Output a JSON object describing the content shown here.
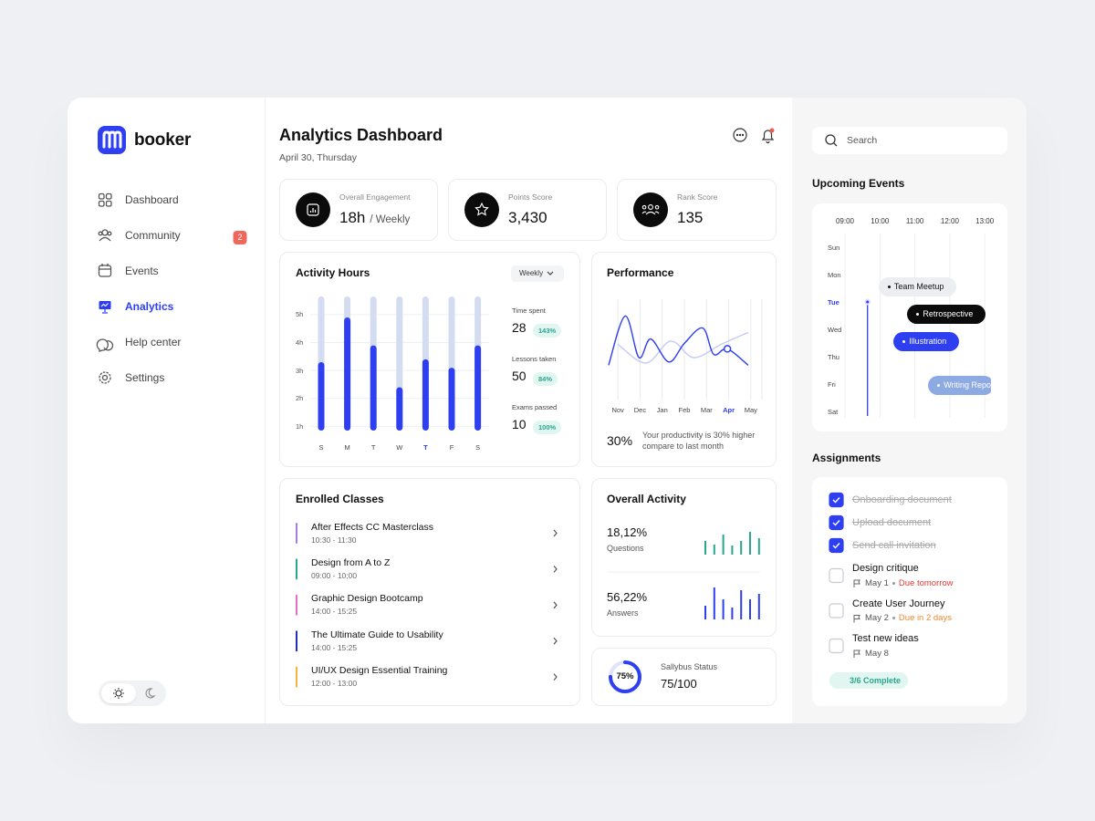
{
  "brand": "booker",
  "nav": [
    {
      "label": "Dashboard"
    },
    {
      "label": "Community",
      "badge": "2"
    },
    {
      "label": "Events"
    },
    {
      "label": "Analytics",
      "active": true
    },
    {
      "label": "Help center"
    },
    {
      "label": "Settings"
    }
  ],
  "header": {
    "title": "Analytics Dashboard",
    "date": "April 30, Thursday"
  },
  "stats": [
    {
      "label": "Overall Engagement",
      "value": "18h",
      "unit": "/ Weekly"
    },
    {
      "label": "Points Score",
      "value": "3,430"
    },
    {
      "label": "Rank Score",
      "value": "135"
    }
  ],
  "activity_hours": {
    "type": "bar",
    "title": "Activity Hours",
    "period": "Weekly",
    "categories": [
      "S",
      "M",
      "T",
      "W",
      "T",
      "F",
      "S"
    ],
    "highlight": 4,
    "values": [
      3.3,
      4.9,
      3.9,
      2.4,
      3.4,
      3.1,
      3.9
    ],
    "color": "#2e3ff2",
    "track_color": "#d4dcf1",
    "ylim": [
      0.85,
      5.65
    ],
    "yticks": [
      {
        "value": 1,
        "label": "1h"
      },
      {
        "value": 2,
        "label": "2h"
      },
      {
        "value": 3,
        "label": "3h"
      },
      {
        "value": 4,
        "label": "4h"
      },
      {
        "value": 5,
        "label": "5h"
      }
    ],
    "grid": true,
    "summary": [
      {
        "label": "Time spent",
        "value": 28,
        "change": "143%"
      },
      {
        "label": "Lessons taken",
        "value": 50,
        "change": "84%"
      },
      {
        "label": "Exams passed",
        "value": 10,
        "change": "100%"
      }
    ]
  },
  "performance": {
    "type": "line",
    "title": "Performance",
    "categories": [
      "Nov",
      "Dec",
      "Jan",
      "Feb",
      "Mar",
      "Apr",
      "May"
    ],
    "highlight": 5,
    "xlim": [
      -0.5,
      6.5
    ],
    "ylim": [
      0,
      100
    ],
    "series": [
      {
        "color": "#2e3ff2",
        "x": [
          -0.42,
          0.33,
          0.95,
          1.48,
          2.3,
          3.0,
          3.83,
          4.32,
          4.94,
          5.88
        ],
        "values": [
          33,
          78,
          40,
          57,
          36,
          53,
          67,
          43,
          48,
          33
        ]
      },
      {
        "color": "#c5cbf3",
        "x": [
          0,
          1.27,
          2.38,
          3.42,
          4.65,
          5.88
        ],
        "values": [
          52,
          35,
          55,
          40,
          52,
          63
        ]
      }
    ],
    "marker": {
      "series": 0,
      "index": 8
    },
    "summary_value": "30%",
    "summary_text": "Your productivity is 30% higher compare to last month"
  },
  "classes": {
    "title": "Enrolled Classes",
    "items": [
      {
        "name": "After Effects CC Masterclass",
        "time": "10:30 - 11:30",
        "color": "#a77ce9"
      },
      {
        "name": "Design from A to Z",
        "time": "09:00 - 10;00",
        "color": "#2aa58e"
      },
      {
        "name": "Graphic Design Bootcamp",
        "time": "14:00 - 15:25",
        "color": "#e56fc8"
      },
      {
        "name": "The Ultimate Guide to Usability",
        "time": "14:00 - 15:25",
        "color": "#1f2fb8"
      },
      {
        "name": "UI/UX Design Essential Training",
        "time": "12:00 - 13:00",
        "color": "#f4b33c"
      }
    ]
  },
  "overall_activity": {
    "title": "Overall Activity",
    "metrics": [
      {
        "value": "18,12%",
        "label": "Questions",
        "color": "#2aa58e",
        "bars": [
          15,
          11,
          22,
          10,
          15,
          25,
          18
        ]
      },
      {
        "value": "56,22%",
        "label": "Answers",
        "color": "#2e3ff2",
        "bars": [
          15,
          35,
          22,
          13,
          32,
          22,
          28
        ]
      }
    ]
  },
  "syllabus": {
    "value": 75,
    "value_label": "75%",
    "label": "Sallybus Status",
    "score": "75/100"
  },
  "search": {
    "placeholder": "Search"
  },
  "events": {
    "title": "Upcoming Events",
    "times": [
      "09:00",
      "10:00",
      "11:00",
      "12:00",
      "13:00"
    ],
    "days": [
      "Sun",
      "Mon",
      "Tue",
      "Wed",
      "Thu",
      "Fri",
      "Sat"
    ],
    "today": 2,
    "now": 9.65,
    "items": [
      {
        "name": "Team Meetup",
        "day": 1,
        "start": 9.97,
        "end": 12.2,
        "color": "#eceef2",
        "text_color": "#111111"
      },
      {
        "name": "Retrospective",
        "day": 2,
        "start": 10.8,
        "end": 13.05,
        "color": "#0b0b0b",
        "text_color": "#ffffff"
      },
      {
        "name": "Illustration",
        "day": 3,
        "start": 10.4,
        "end": 12.3,
        "color": "#2e3ff2",
        "text_color": "#ffffff"
      },
      {
        "name": "Writing Report",
        "day": 4.6,
        "start": 11.4,
        "end": 13.3,
        "color": "#8eaae2",
        "text_color": "#ffffff"
      }
    ]
  },
  "assignments": {
    "title": "Assignments",
    "items": [
      {
        "name": "Onboarding document",
        "done": true
      },
      {
        "name": "Upload document",
        "done": true
      },
      {
        "name": "Send call invitation",
        "done": true
      },
      {
        "name": "Design critique",
        "done": false,
        "date": "May 1",
        "note": "Due tomorrow",
        "note_color": "#e53935"
      },
      {
        "name": "Create User Journey",
        "done": false,
        "date": "May 2",
        "note": "Due in 2 days",
        "note_color": "#ef8a2b"
      },
      {
        "name": "Test new ideas",
        "done": false,
        "date": "May 8"
      }
    ],
    "summary": "3/6 Complete"
  }
}
